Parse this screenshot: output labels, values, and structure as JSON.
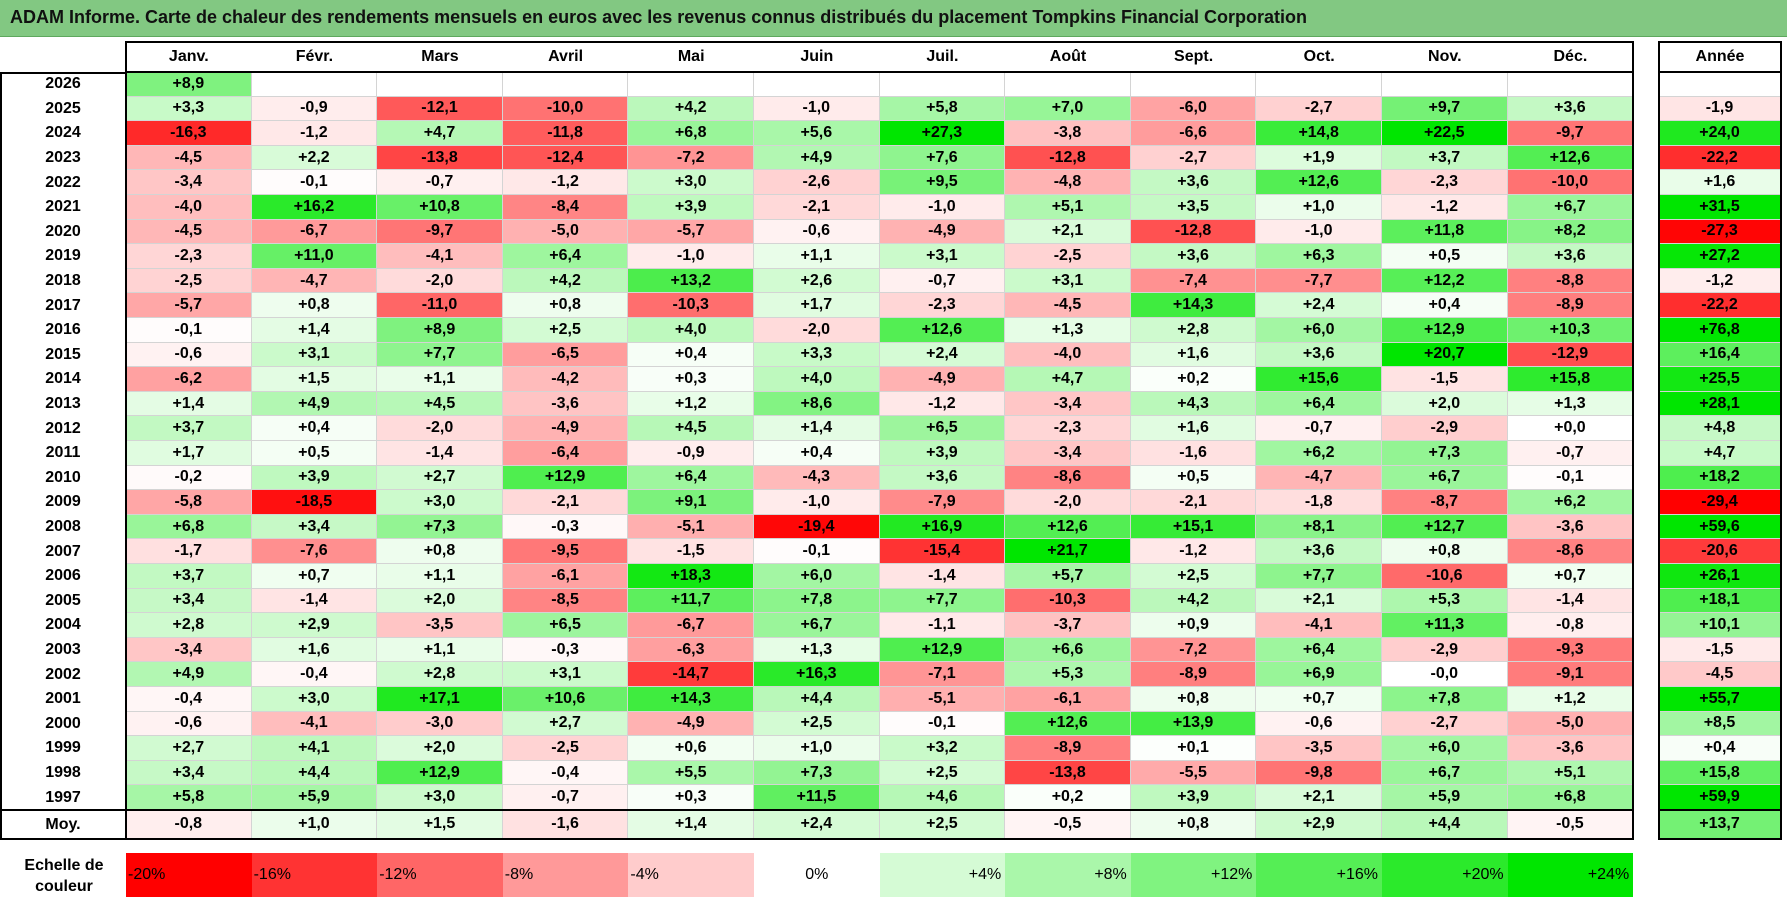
{
  "title": "ADAM Informe. Carte de chaleur des rendements mensuels en euros avec les revenus connus distribués du placement Tompkins Financial Corporation",
  "chart_data": {
    "type": "heatmap",
    "columns": [
      "Janv.",
      "Févr.",
      "Mars",
      "Avril",
      "Mai",
      "Juin",
      "Juil.",
      "Août",
      "Sept.",
      "Oct.",
      "Nov.",
      "Déc."
    ],
    "year_column_label": "Année",
    "average_label": "Moy.",
    "rows": [
      {
        "year": "2026",
        "months": [
          "+8,9",
          "",
          "",
          "",
          "",
          "",
          "",
          "",
          "",
          "",
          "",
          ""
        ],
        "annual": ""
      },
      {
        "year": "2025",
        "months": [
          "+3,3",
          "-0,9",
          "-12,1",
          "-10,0",
          "+4,2",
          "-1,0",
          "+5,8",
          "+7,0",
          "-6,0",
          "-2,7",
          "+9,7",
          "+3,6"
        ],
        "annual": "-1,9"
      },
      {
        "year": "2024",
        "months": [
          "-16,3",
          "-1,2",
          "+4,7",
          "-11,8",
          "+6,8",
          "+5,6",
          "+27,3",
          "-3,8",
          "-6,6",
          "+14,8",
          "+22,5",
          "-9,7"
        ],
        "annual": "+24,0"
      },
      {
        "year": "2023",
        "months": [
          "-4,5",
          "+2,2",
          "-13,8",
          "-12,4",
          "-7,2",
          "+4,9",
          "+7,6",
          "-12,8",
          "-2,7",
          "+1,9",
          "+3,7",
          "+12,6"
        ],
        "annual": "-22,2"
      },
      {
        "year": "2022",
        "months": [
          "-3,4",
          "-0,1",
          "-0,7",
          "-1,2",
          "+3,0",
          "-2,6",
          "+9,5",
          "-4,8",
          "+3,6",
          "+12,6",
          "-2,3",
          "-10,0"
        ],
        "annual": "+1,6"
      },
      {
        "year": "2021",
        "months": [
          "-4,0",
          "+16,2",
          "+10,8",
          "-8,4",
          "+3,9",
          "-2,1",
          "-1,0",
          "+5,1",
          "+3,5",
          "+1,0",
          "-1,2",
          "+6,7"
        ],
        "annual": "+31,5"
      },
      {
        "year": "2020",
        "months": [
          "-4,5",
          "-6,7",
          "-9,7",
          "-5,0",
          "-5,7",
          "-0,6",
          "-4,9",
          "+2,1",
          "-12,8",
          "-1,0",
          "+11,8",
          "+8,2"
        ],
        "annual": "-27,3"
      },
      {
        "year": "2019",
        "months": [
          "-2,3",
          "+11,0",
          "-4,1",
          "+6,4",
          "-1,0",
          "+1,1",
          "+3,1",
          "-2,5",
          "+3,6",
          "+6,3",
          "+0,5",
          "+3,6"
        ],
        "annual": "+27,2"
      },
      {
        "year": "2018",
        "months": [
          "-2,5",
          "-4,7",
          "-2,0",
          "+4,2",
          "+13,2",
          "+2,6",
          "-0,7",
          "+3,1",
          "-7,4",
          "-7,7",
          "+12,2",
          "-8,8"
        ],
        "annual": "-1,2"
      },
      {
        "year": "2017",
        "months": [
          "-5,7",
          "+0,8",
          "-11,0",
          "+0,8",
          "-10,3",
          "+1,7",
          "-2,3",
          "-4,5",
          "+14,3",
          "+2,4",
          "+0,4",
          "-8,9"
        ],
        "annual": "-22,2"
      },
      {
        "year": "2016",
        "months": [
          "-0,1",
          "+1,4",
          "+8,9",
          "+2,5",
          "+4,0",
          "-2,0",
          "+12,6",
          "+1,3",
          "+2,8",
          "+6,0",
          "+12,9",
          "+10,3"
        ],
        "annual": "+76,8"
      },
      {
        "year": "2015",
        "months": [
          "-0,6",
          "+3,1",
          "+7,7",
          "-6,5",
          "+0,4",
          "+3,3",
          "+2,4",
          "-4,0",
          "+1,6",
          "+3,6",
          "+20,7",
          "-12,9"
        ],
        "annual": "+16,4"
      },
      {
        "year": "2014",
        "months": [
          "-6,2",
          "+1,5",
          "+1,1",
          "-4,2",
          "+0,3",
          "+4,0",
          "-4,9",
          "+4,7",
          "+0,2",
          "+15,6",
          "-1,5",
          "+15,8"
        ],
        "annual": "+25,5"
      },
      {
        "year": "2013",
        "months": [
          "+1,4",
          "+4,9",
          "+4,5",
          "-3,6",
          "+1,2",
          "+8,6",
          "-1,2",
          "-3,4",
          "+4,3",
          "+6,4",
          "+2,0",
          "+1,3"
        ],
        "annual": "+28,1"
      },
      {
        "year": "2012",
        "months": [
          "+3,7",
          "+0,4",
          "-2,0",
          "-4,9",
          "+4,5",
          "+1,4",
          "+6,5",
          "-2,3",
          "+1,6",
          "-0,7",
          "-2,9",
          "+0,0"
        ],
        "annual": "+4,8"
      },
      {
        "year": "2011",
        "months": [
          "+1,7",
          "+0,5",
          "-1,4",
          "-6,4",
          "-0,9",
          "+0,4",
          "+3,9",
          "-3,4",
          "-1,6",
          "+6,2",
          "+7,3",
          "-0,7"
        ],
        "annual": "+4,7"
      },
      {
        "year": "2010",
        "months": [
          "-0,2",
          "+3,9",
          "+2,7",
          "+12,9",
          "+6,4",
          "-4,3",
          "+3,6",
          "-8,6",
          "+0,5",
          "-4,7",
          "+6,7",
          "-0,1"
        ],
        "annual": "+18,2"
      },
      {
        "year": "2009",
        "months": [
          "-5,8",
          "-18,5",
          "+3,0",
          "-2,1",
          "+9,1",
          "-1,0",
          "-7,9",
          "-2,0",
          "-2,1",
          "-1,8",
          "-8,7",
          "+6,2"
        ],
        "annual": "-29,4"
      },
      {
        "year": "2008",
        "months": [
          "+6,8",
          "+3,4",
          "+7,3",
          "-0,3",
          "-5,1",
          "-19,4",
          "+16,9",
          "+12,6",
          "+15,1",
          "+8,1",
          "+12,7",
          "-3,6"
        ],
        "annual": "+59,6"
      },
      {
        "year": "2007",
        "months": [
          "-1,7",
          "-7,6",
          "+0,8",
          "-9,5",
          "-1,5",
          "-0,1",
          "-15,4",
          "+21,7",
          "-1,2",
          "+3,6",
          "+0,8",
          "-8,6"
        ],
        "annual": "-20,6"
      },
      {
        "year": "2006",
        "months": [
          "+3,7",
          "+0,7",
          "+1,1",
          "-6,1",
          "+18,3",
          "+6,0",
          "-1,4",
          "+5,7",
          "+2,5",
          "+7,7",
          "-10,6",
          "+0,7"
        ],
        "annual": "+26,1"
      },
      {
        "year": "2005",
        "months": [
          "+3,4",
          "-1,4",
          "+2,0",
          "-8,5",
          "+11,7",
          "+7,8",
          "+7,7",
          "-10,3",
          "+4,2",
          "+2,1",
          "+5,3",
          "-1,4"
        ],
        "annual": "+18,1"
      },
      {
        "year": "2004",
        "months": [
          "+2,8",
          "+2,9",
          "-3,5",
          "+6,5",
          "-6,7",
          "+6,7",
          "-1,1",
          "-3,7",
          "+0,9",
          "-4,1",
          "+11,3",
          "-0,8"
        ],
        "annual": "+10,1"
      },
      {
        "year": "2003",
        "months": [
          "-3,4",
          "+1,6",
          "+1,1",
          "-0,3",
          "-6,3",
          "+1,3",
          "+12,9",
          "+6,6",
          "-7,2",
          "+6,4",
          "-2,9",
          "-9,3"
        ],
        "annual": "-1,5"
      },
      {
        "year": "2002",
        "months": [
          "+4,9",
          "-0,4",
          "+2,8",
          "+3,1",
          "-14,7",
          "+16,3",
          "-7,1",
          "+5,3",
          "-8,9",
          "+6,9",
          "-0,0",
          "-9,1"
        ],
        "annual": "-4,5"
      },
      {
        "year": "2001",
        "months": [
          "-0,4",
          "+3,0",
          "+17,1",
          "+10,6",
          "+14,3",
          "+4,4",
          "-5,1",
          "-6,1",
          "+0,8",
          "+0,7",
          "+7,8",
          "+1,2"
        ],
        "annual": "+55,7"
      },
      {
        "year": "2000",
        "months": [
          "-0,6",
          "-4,1",
          "-3,0",
          "+2,7",
          "-4,9",
          "+2,5",
          "-0,1",
          "+12,6",
          "+13,9",
          "-0,6",
          "-2,7",
          "-5,0"
        ],
        "annual": "+8,5"
      },
      {
        "year": "1999",
        "months": [
          "+2,7",
          "+4,1",
          "+2,0",
          "-2,5",
          "+0,6",
          "+1,0",
          "+3,2",
          "-8,9",
          "+0,1",
          "-3,5",
          "+6,0",
          "-3,6"
        ],
        "annual": "+0,4"
      },
      {
        "year": "1998",
        "months": [
          "+3,4",
          "+4,4",
          "+12,9",
          "-0,4",
          "+5,5",
          "+7,3",
          "+2,5",
          "-13,8",
          "-5,5",
          "-9,8",
          "+6,7",
          "+5,1"
        ],
        "annual": "+15,8"
      },
      {
        "year": "1997",
        "months": [
          "+5,8",
          "+5,9",
          "+3,0",
          "-0,7",
          "+0,3",
          "+11,5",
          "+4,6",
          "+0,2",
          "+3,9",
          "+2,1",
          "+5,9",
          "+6,8"
        ],
        "annual": "+59,9"
      }
    ],
    "average": {
      "months": [
        "-0,8",
        "+1,0",
        "+1,5",
        "-1,6",
        "+1,4",
        "+2,4",
        "+2,5",
        "-0,5",
        "+0,8",
        "+2,9",
        "+4,4",
        "-0,5"
      ],
      "annual": "+13,7"
    },
    "color_scale": {
      "label": "Echelle de couleur",
      "stops": [
        "-20%",
        "-16%",
        "-12%",
        "-8%",
        "-4%",
        "0%",
        "+4%",
        "+8%",
        "+12%",
        "+16%",
        "+20%",
        "+24%"
      ],
      "stop_values": [
        -20,
        -16,
        -12,
        -8,
        -4,
        0,
        4,
        8,
        12,
        16,
        20,
        24
      ],
      "negative_color": "#ff0000",
      "positive_color": "#00e600",
      "neutral_color": "#ffffff"
    }
  }
}
